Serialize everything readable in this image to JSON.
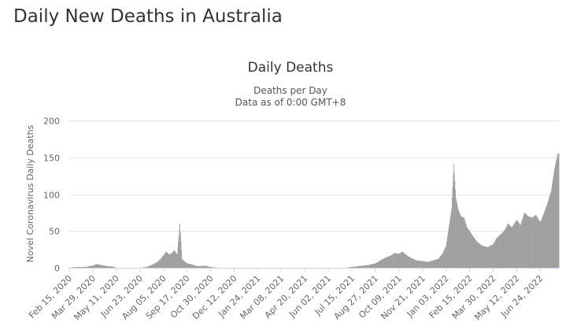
{
  "page": {
    "heading": "Daily New Deaths in Australia"
  },
  "colors": {
    "bar": "#9b9b9b",
    "gridline": "#e6e6e6",
    "text": "#333333",
    "axis_text": "#666666"
  },
  "chart_data": {
    "type": "bar",
    "title": "Daily Deaths",
    "subtitle_lines": [
      "Deaths per Day",
      "Data as of 0:00 GMT+8"
    ],
    "xlabel": "",
    "ylabel": "Novel Coronavirus Daily Deaths",
    "ylim": [
      0,
      200
    ],
    "yticks": [
      0,
      50,
      100,
      150,
      200
    ],
    "grid": true,
    "legend": "none",
    "xrange": [
      "2020-02-15",
      "2022-07-28"
    ],
    "xtick_labels": [
      "Feb 15, 2020",
      "Mar 29, 2020",
      "May 11, 2020",
      "Jun 23, 2020",
      "Aug 05, 2020",
      "Sep 17, 2020",
      "Oct 30, 2020",
      "Dec 12, 2020",
      "Jan 24, 2021",
      "Mar 08, 2021",
      "Apr 20, 2021",
      "Jun 02, 2021",
      "Jul 15, 2021",
      "Aug 27, 2021",
      "Oct 09, 2021",
      "Nov 21, 2021",
      "Jan 03, 2022",
      "Feb 15, 2022",
      "Mar 30, 2022",
      "May 12, 2022",
      "Jun 24, 2022"
    ],
    "series": [
      {
        "values": [
          [
            "2020-02-15",
            0
          ],
          [
            "2020-03-01",
            1
          ],
          [
            "2020-03-15",
            1
          ],
          [
            "2020-03-29",
            3
          ],
          [
            "2020-04-05",
            5
          ],
          [
            "2020-04-12",
            4
          ],
          [
            "2020-04-19",
            3
          ],
          [
            "2020-04-26",
            2
          ],
          [
            "2020-05-03",
            2
          ],
          [
            "2020-05-11",
            0
          ],
          [
            "2020-05-25",
            0
          ],
          [
            "2020-06-08",
            0
          ],
          [
            "2020-06-23",
            0
          ],
          [
            "2020-07-05",
            1
          ],
          [
            "2020-07-15",
            4
          ],
          [
            "2020-07-25",
            8
          ],
          [
            "2020-08-01",
            13
          ],
          [
            "2020-08-05",
            17
          ],
          [
            "2020-08-10",
            22
          ],
          [
            "2020-08-15",
            18
          ],
          [
            "2020-08-20",
            20
          ],
          [
            "2020-08-25",
            24
          ],
          [
            "2020-08-30",
            18
          ],
          [
            "2020-09-04",
            60
          ],
          [
            "2020-09-08",
            12
          ],
          [
            "2020-09-12",
            9
          ],
          [
            "2020-09-17",
            6
          ],
          [
            "2020-09-24",
            5
          ],
          [
            "2020-10-01",
            3
          ],
          [
            "2020-10-10",
            2
          ],
          [
            "2020-10-20",
            3
          ],
          [
            "2020-10-30",
            1
          ],
          [
            "2020-11-15",
            0
          ],
          [
            "2020-12-12",
            0
          ],
          [
            "2021-01-24",
            0
          ],
          [
            "2021-03-08",
            0
          ],
          [
            "2021-04-20",
            0
          ],
          [
            "2021-06-02",
            0
          ],
          [
            "2021-07-01",
            0
          ],
          [
            "2021-07-15",
            1
          ],
          [
            "2021-07-25",
            2
          ],
          [
            "2021-08-05",
            3
          ],
          [
            "2021-08-15",
            4
          ],
          [
            "2021-08-27",
            6
          ],
          [
            "2021-09-05",
            10
          ],
          [
            "2021-09-15",
            14
          ],
          [
            "2021-09-25",
            17
          ],
          [
            "2021-10-01",
            20
          ],
          [
            "2021-10-09",
            19
          ],
          [
            "2021-10-15",
            22
          ],
          [
            "2021-10-25",
            16
          ],
          [
            "2021-11-01",
            13
          ],
          [
            "2021-11-10",
            10
          ],
          [
            "2021-11-21",
            9
          ],
          [
            "2021-12-01",
            8
          ],
          [
            "2021-12-10",
            10
          ],
          [
            "2021-12-20",
            12
          ],
          [
            "2021-12-28",
            20
          ],
          [
            "2022-01-03",
            30
          ],
          [
            "2022-01-08",
            55
          ],
          [
            "2022-01-13",
            80
          ],
          [
            "2022-01-17",
            141
          ],
          [
            "2022-01-21",
            95
          ],
          [
            "2022-01-25",
            80
          ],
          [
            "2022-01-30",
            70
          ],
          [
            "2022-02-05",
            68
          ],
          [
            "2022-02-10",
            55
          ],
          [
            "2022-02-15",
            50
          ],
          [
            "2022-02-22",
            42
          ],
          [
            "2022-03-01",
            35
          ],
          [
            "2022-03-10",
            30
          ],
          [
            "2022-03-20",
            28
          ],
          [
            "2022-03-30",
            32
          ],
          [
            "2022-04-05",
            40
          ],
          [
            "2022-04-12",
            45
          ],
          [
            "2022-04-19",
            50
          ],
          [
            "2022-04-26",
            60
          ],
          [
            "2022-05-03",
            55
          ],
          [
            "2022-05-12",
            65
          ],
          [
            "2022-05-19",
            58
          ],
          [
            "2022-05-26",
            75
          ],
          [
            "2022-06-02",
            70
          ],
          [
            "2022-06-09",
            68
          ],
          [
            "2022-06-16",
            72
          ],
          [
            "2022-06-24",
            62
          ],
          [
            "2022-07-01",
            75
          ],
          [
            "2022-07-08",
            90
          ],
          [
            "2022-07-14",
            105
          ],
          [
            "2022-07-20",
            135
          ],
          [
            "2022-07-26",
            155
          ]
        ]
      }
    ]
  }
}
